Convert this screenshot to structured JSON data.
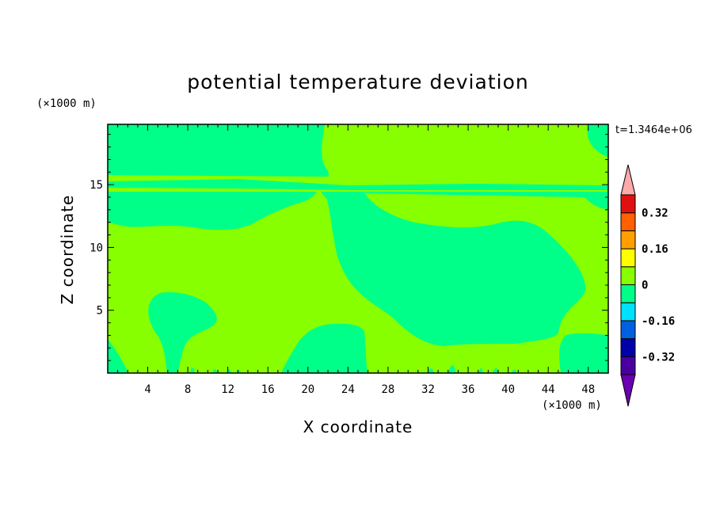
{
  "chart_data": {
    "type": "heatmap",
    "title": "potential temperature deviation",
    "xlabel": "X coordinate",
    "ylabel": "Z coordinate",
    "x_unit_label": "(×1000 m)",
    "y_unit_label": "(×1000 m)",
    "time_label": "t=1.3464e+06",
    "xlim": [
      0,
      50
    ],
    "ylim": [
      0,
      19.8
    ],
    "x_ticks": [
      4,
      8,
      12,
      16,
      20,
      24,
      28,
      32,
      36,
      40,
      44,
      48
    ],
    "y_ticks": [
      5,
      10,
      15
    ],
    "colorbar": {
      "levels": [
        -0.4,
        -0.32,
        -0.24,
        -0.16,
        -0.08,
        0,
        0.08,
        0.16,
        0.24,
        0.32,
        0.4
      ],
      "labels": [
        "0.32",
        "0.16",
        "0",
        "-0.16",
        "-0.32"
      ],
      "label_values": [
        0.32,
        0.16,
        0,
        -0.16,
        -0.32
      ],
      "colors": [
        "#4a00a0",
        "#0000aa",
        "#0060e0",
        "#00e0ff",
        "#00ff88",
        "#88ff00",
        "#ffff00",
        "#ffa000",
        "#ff6000",
        "#e01010"
      ],
      "over_color": "#ffaaaa",
      "under_color": "#6a00b0"
    },
    "background_level": "0 to 0.08",
    "regions_below_zero": [
      {
        "name": "upper-left-band",
        "level": "-0.08 to 0",
        "x": [
          0,
          23
        ],
        "z": [
          15.5,
          19.8
        ]
      },
      {
        "name": "upper-right-corner",
        "level": "-0.08 to 0",
        "x": [
          47,
          50
        ],
        "z": [
          17,
          19.8
        ]
      },
      {
        "name": "thin-layer",
        "level": "-0.08 to 0",
        "x": [
          0,
          50
        ],
        "z": [
          14.6,
          15.2
        ]
      },
      {
        "name": "mid-left-band",
        "level": "-0.08 to 0",
        "x": [
          0,
          22
        ],
        "z": [
          11.5,
          14.5
        ]
      },
      {
        "name": "large-central-blob",
        "level": "-0.08 to 0",
        "x": [
          22,
          50
        ],
        "z": [
          2.4,
          14.5
        ]
      },
      {
        "name": "lower-left-blob",
        "level": "-0.08 to 0",
        "x": [
          4,
          10
        ],
        "z": [
          0.5,
          6.6
        ]
      },
      {
        "name": "bottom-center-blob",
        "level": "-0.08 to 0",
        "x": [
          18,
          26
        ],
        "z": [
          0,
          4
        ]
      },
      {
        "name": "bottom-left-corner",
        "level": "-0.08 to 0",
        "x": [
          0,
          2
        ],
        "z": [
          0,
          3
        ]
      },
      {
        "name": "bottom-right-blob",
        "level": "-0.08 to 0",
        "x": [
          45,
          50
        ],
        "z": [
          0,
          3.3
        ]
      }
    ]
  }
}
